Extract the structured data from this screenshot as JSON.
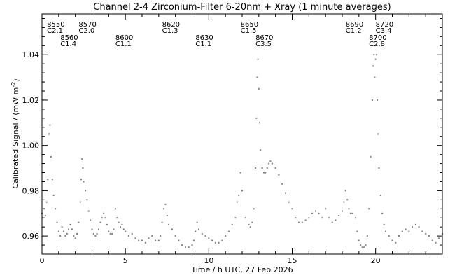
{
  "chart_data": {
    "type": "scatter",
    "title": "Channel 2-4   Zirconium-Filter   6-20nm + Xray   (1 minute averages)",
    "xlabel": "Time / h UTC, 27 Feb 2026",
    "ylabel_main": "Calibrated Signal / (mW m",
    "ylabel_exp": "-2",
    "ylabel_close": ")",
    "xlim": [
      0,
      24
    ],
    "ylim": [
      0.952,
      1.058
    ],
    "x_ticks": [
      0,
      5,
      10,
      15,
      20
    ],
    "x_tick_labels": [
      "0",
      "5",
      "10",
      "15",
      "20"
    ],
    "y_ticks": [
      0.96,
      0.98,
      1.0,
      1.02,
      1.04
    ],
    "y_tick_labels": [
      "0.96",
      "0.98",
      "1.00",
      "1.02",
      "1.04"
    ],
    "grid": false,
    "point_color": "#808080",
    "flare_annotations": [
      {
        "event": "8550",
        "class": "C2.1",
        "x": 0.3,
        "row": 1
      },
      {
        "event": "8560",
        "class": "C1.4",
        "x": 1.1,
        "row": 2
      },
      {
        "event": "8570",
        "class": "C2.0",
        "x": 2.2,
        "row": 1
      },
      {
        "event": "8600",
        "class": "C1.1",
        "x": 4.4,
        "row": 2
      },
      {
        "event": "8620",
        "class": "C1.3",
        "x": 7.2,
        "row": 1
      },
      {
        "event": "8630",
        "class": "C1.1",
        "x": 9.2,
        "row": 2
      },
      {
        "event": "8650",
        "class": "C1.5",
        "x": 11.9,
        "row": 1
      },
      {
        "event": "8670",
        "class": "C3.5",
        "x": 12.8,
        "row": 2
      },
      {
        "event": "8690",
        "class": "C1.2",
        "x": 18.2,
        "row": 1
      },
      {
        "event": "8700",
        "class": "C2.8",
        "x": 19.6,
        "row": 2
      },
      {
        "event": "8720",
        "class": "C3.4",
        "x": 20.0,
        "row": 1
      }
    ],
    "series": [
      {
        "points": [
          [
            0.0,
            0.97
          ],
          [
            0.05,
            0.968
          ],
          [
            0.12,
            0.972
          ],
          [
            0.2,
            0.969
          ],
          [
            0.28,
            0.975
          ],
          [
            0.35,
            0.985
          ],
          [
            0.42,
            1.005
          ],
          [
            0.48,
            1.009
          ],
          [
            0.55,
            0.995
          ],
          [
            0.62,
            0.985
          ],
          [
            0.7,
            0.978
          ],
          [
            0.8,
            0.972
          ],
          [
            0.9,
            0.966
          ],
          [
            1.0,
            0.962
          ],
          [
            1.1,
            0.96
          ],
          [
            1.2,
            0.964
          ],
          [
            1.3,
            0.962
          ],
          [
            1.4,
            0.96
          ],
          [
            1.5,
            0.961
          ],
          [
            1.6,
            0.963
          ],
          [
            1.7,
            0.965
          ],
          [
            1.8,
            0.963
          ],
          [
            1.9,
            0.96
          ],
          [
            2.0,
            0.959
          ],
          [
            2.1,
            0.961
          ],
          [
            2.2,
            0.966
          ],
          [
            2.3,
            0.975
          ],
          [
            2.35,
            0.985
          ],
          [
            2.4,
            0.994
          ],
          [
            2.45,
            0.99
          ],
          [
            2.5,
            0.984
          ],
          [
            2.6,
            0.98
          ],
          [
            2.7,
            0.976
          ],
          [
            2.8,
            0.971
          ],
          [
            2.9,
            0.967
          ],
          [
            3.0,
            0.963
          ],
          [
            3.1,
            0.961
          ],
          [
            3.2,
            0.96
          ],
          [
            3.3,
            0.961
          ],
          [
            3.4,
            0.963
          ],
          [
            3.5,
            0.966
          ],
          [
            3.6,
            0.968
          ],
          [
            3.7,
            0.97
          ],
          [
            3.8,
            0.968
          ],
          [
            3.9,
            0.965
          ],
          [
            4.0,
            0.962
          ],
          [
            4.1,
            0.961
          ],
          [
            4.2,
            0.961
          ],
          [
            4.3,
            0.963
          ],
          [
            4.4,
            0.972
          ],
          [
            4.5,
            0.968
          ],
          [
            4.6,
            0.966
          ],
          [
            4.7,
            0.964
          ],
          [
            4.8,
            0.965
          ],
          [
            4.9,
            0.963
          ],
          [
            5.0,
            0.962
          ],
          [
            5.2,
            0.96
          ],
          [
            5.4,
            0.961
          ],
          [
            5.6,
            0.959
          ],
          [
            5.8,
            0.958
          ],
          [
            6.0,
            0.958
          ],
          [
            6.2,
            0.957
          ],
          [
            6.4,
            0.959
          ],
          [
            6.6,
            0.96
          ],
          [
            6.8,
            0.958
          ],
          [
            7.0,
            0.958
          ],
          [
            7.1,
            0.96
          ],
          [
            7.2,
            0.966
          ],
          [
            7.3,
            0.972
          ],
          [
            7.4,
            0.974
          ],
          [
            7.5,
            0.969
          ],
          [
            7.6,
            0.965
          ],
          [
            7.8,
            0.963
          ],
          [
            8.0,
            0.96
          ],
          [
            8.2,
            0.958
          ],
          [
            8.4,
            0.956
          ],
          [
            8.6,
            0.955
          ],
          [
            8.8,
            0.955
          ],
          [
            9.0,
            0.956
          ],
          [
            9.1,
            0.958
          ],
          [
            9.2,
            0.962
          ],
          [
            9.3,
            0.966
          ],
          [
            9.4,
            0.963
          ],
          [
            9.6,
            0.961
          ],
          [
            9.8,
            0.96
          ],
          [
            10.0,
            0.959
          ],
          [
            10.2,
            0.958
          ],
          [
            10.4,
            0.957
          ],
          [
            10.6,
            0.957
          ],
          [
            10.8,
            0.958
          ],
          [
            11.0,
            0.96
          ],
          [
            11.2,
            0.962
          ],
          [
            11.4,
            0.965
          ],
          [
            11.6,
            0.968
          ],
          [
            11.7,
            0.975
          ],
          [
            11.8,
            0.978
          ],
          [
            11.9,
            0.988
          ],
          [
            12.0,
            0.98
          ],
          [
            12.2,
            0.968
          ],
          [
            12.4,
            0.965
          ],
          [
            12.5,
            0.964
          ],
          [
            12.6,
            0.966
          ],
          [
            12.7,
            0.972
          ],
          [
            12.8,
            0.99
          ],
          [
            12.85,
            1.012
          ],
          [
            12.9,
            1.03
          ],
          [
            12.95,
            1.038
          ],
          [
            13.0,
            1.025
          ],
          [
            13.05,
            1.01
          ],
          [
            13.1,
            0.998
          ],
          [
            13.2,
            0.99
          ],
          [
            13.3,
            0.988
          ],
          [
            13.4,
            0.988
          ],
          [
            13.5,
            0.99
          ],
          [
            13.6,
            0.992
          ],
          [
            13.7,
            0.993
          ],
          [
            13.8,
            0.992
          ],
          [
            14.0,
            0.99
          ],
          [
            14.2,
            0.987
          ],
          [
            14.4,
            0.983
          ],
          [
            14.6,
            0.979
          ],
          [
            14.8,
            0.975
          ],
          [
            15.0,
            0.972
          ],
          [
            15.2,
            0.968
          ],
          [
            15.4,
            0.966
          ],
          [
            15.6,
            0.966
          ],
          [
            15.8,
            0.967
          ],
          [
            16.0,
            0.968
          ],
          [
            16.2,
            0.97
          ],
          [
            16.4,
            0.971
          ],
          [
            16.6,
            0.97
          ],
          [
            16.8,
            0.968
          ],
          [
            17.0,
            0.972
          ],
          [
            17.2,
            0.968
          ],
          [
            17.4,
            0.966
          ],
          [
            17.6,
            0.967
          ],
          [
            17.8,
            0.969
          ],
          [
            18.0,
            0.971
          ],
          [
            18.1,
            0.975
          ],
          [
            18.2,
            0.98
          ],
          [
            18.3,
            0.976
          ],
          [
            18.4,
            0.972
          ],
          [
            18.5,
            0.97
          ],
          [
            18.6,
            0.97
          ],
          [
            18.8,
            0.968
          ],
          [
            18.9,
            0.962
          ],
          [
            19.0,
            0.958
          ],
          [
            19.1,
            0.956
          ],
          [
            19.2,
            0.955
          ],
          [
            19.3,
            0.955
          ],
          [
            19.4,
            0.956
          ],
          [
            19.5,
            0.96
          ],
          [
            19.6,
            0.972
          ],
          [
            19.7,
            0.995
          ],
          [
            19.8,
            1.02
          ],
          [
            19.85,
            1.035
          ],
          [
            19.9,
            1.04
          ],
          [
            19.95,
            1.03
          ],
          [
            20.0,
            1.038
          ],
          [
            20.05,
            1.04
          ],
          [
            20.1,
            1.02
          ],
          [
            20.15,
            1.005
          ],
          [
            20.2,
            0.99
          ],
          [
            20.3,
            0.978
          ],
          [
            20.4,
            0.97
          ],
          [
            20.5,
            0.965
          ],
          [
            20.6,
            0.962
          ],
          [
            20.8,
            0.96
          ],
          [
            21.0,
            0.958
          ],
          [
            21.2,
            0.957
          ],
          [
            21.4,
            0.96
          ],
          [
            21.6,
            0.962
          ],
          [
            21.8,
            0.963
          ],
          [
            22.0,
            0.962
          ],
          [
            22.2,
            0.964
          ],
          [
            22.4,
            0.965
          ],
          [
            22.6,
            0.964
          ],
          [
            22.8,
            0.962
          ],
          [
            23.0,
            0.961
          ],
          [
            23.2,
            0.96
          ],
          [
            23.4,
            0.958
          ],
          [
            23.6,
            0.957
          ],
          [
            23.8,
            0.959
          ],
          [
            24.0,
            0.961
          ]
        ]
      }
    ]
  }
}
